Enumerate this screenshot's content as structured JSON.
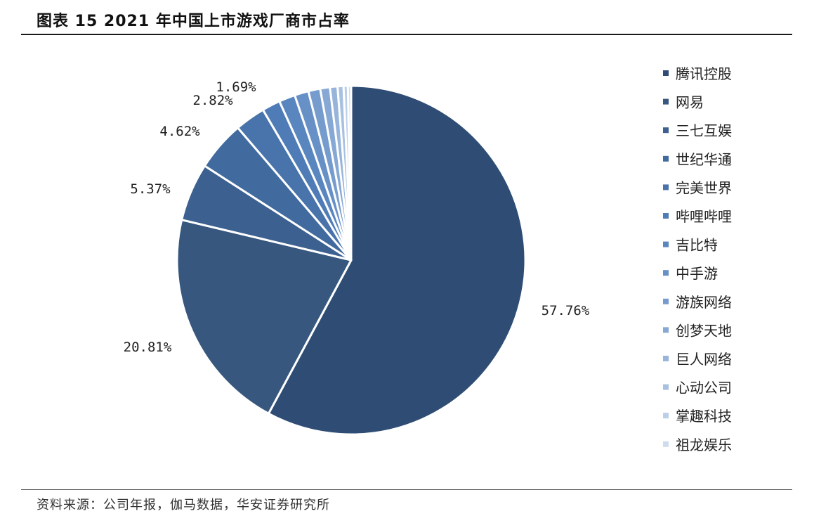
{
  "figure": {
    "title": "图表 15   2021 年中国上市游戏厂商市占率",
    "source": "资料来源：公司年报，伽马数据，华安证券研究所"
  },
  "chart_data": {
    "type": "pie",
    "title": "2021 年中国上市游戏厂商市占率",
    "legend_position": "right",
    "slices": [
      {
        "name": "腾讯控股",
        "value": 57.76,
        "label": "57.76%",
        "color": "#2f4d74"
      },
      {
        "name": "网易",
        "value": 20.81,
        "label": "20.81%",
        "color": "#37577f"
      },
      {
        "name": "三七互娱",
        "value": 5.37,
        "label": "5.37%",
        "color": "#3c6090"
      },
      {
        "name": "世纪华通",
        "value": 4.62,
        "label": "4.62%",
        "color": "#416a9e"
      },
      {
        "name": "完美世界",
        "value": 2.82,
        "label": "2.82%",
        "color": "#4973ab"
      },
      {
        "name": "哔哩哔哩",
        "value": 1.69,
        "label": "1.69%",
        "color": "#4f7cb7"
      },
      {
        "name": "吉比特",
        "value": 1.5,
        "label": "",
        "color": "#5a86bf"
      },
      {
        "name": "中手游",
        "value": 1.3,
        "label": "",
        "color": "#6790c6"
      },
      {
        "name": "游族网络",
        "value": 1.1,
        "label": "",
        "color": "#769cce"
      },
      {
        "name": "创梦天地",
        "value": 0.9,
        "label": "",
        "color": "#86a8d4"
      },
      {
        "name": "巨人网络",
        "value": 0.7,
        "label": "",
        "color": "#97b4da"
      },
      {
        "name": "心动公司",
        "value": 0.55,
        "label": "",
        "color": "#a9c1e1"
      },
      {
        "name": "掌趣科技",
        "value": 0.4,
        "label": "",
        "color": "#bccfe8"
      },
      {
        "name": "祖龙娱乐",
        "value": 0.3,
        "label": "",
        "color": "#cfdcef"
      }
    ]
  }
}
